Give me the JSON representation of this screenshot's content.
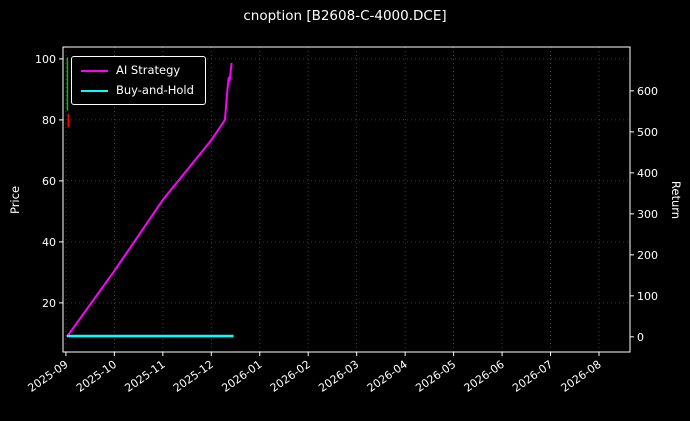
{
  "title": "cnoption [B2608-C-4000.DCE]",
  "colors": {
    "background": "#000000",
    "text": "#ffffff",
    "grid": "#4d4d4d",
    "spine": "#ffffff",
    "ai_strategy": "#ff00ff",
    "buy_and_hold": "#00ffff",
    "price_up": "#00c000",
    "price_down": "#ff0000"
  },
  "legend": {
    "items": [
      {
        "label": "AI Strategy",
        "color": "#ff00ff"
      },
      {
        "label": "Buy-and-Hold",
        "color": "#00ffff"
      }
    ]
  },
  "chart_data": {
    "type": "line",
    "title": "cnoption [B2608-C-4000.DCE]",
    "xlabel": "",
    "ylabel_left": "Price",
    "ylabel_right": "Return",
    "legend_position": "upper-left",
    "grid": true,
    "grid_style": "dotted",
    "x_unit": "months_since_2025-09",
    "x_tick_labels": [
      "2025-09",
      "2025-10",
      "2025-11",
      "2025-12",
      "2026-01",
      "2026-02",
      "2026-03",
      "2026-04",
      "2026-05",
      "2026-06",
      "2026-07",
      "2026-08"
    ],
    "x_range": [
      -0.06,
      11.64
    ],
    "price_axis": {
      "label": "Price",
      "ticks": [
        20,
        40,
        60,
        80,
        100
      ],
      "range": [
        3.9,
        103.9
      ]
    },
    "return_axis": {
      "label": "Return",
      "ticks": [
        0,
        100,
        200,
        300,
        400,
        500,
        600
      ],
      "range": [
        -37,
        707
      ]
    },
    "series": [
      {
        "name": "AI Strategy",
        "axis": "return",
        "color": "#ff00ff",
        "width": 2,
        "points": [
          [
            0.02,
            0
          ],
          [
            1.0,
            161
          ],
          [
            2.0,
            334
          ],
          [
            3.0,
            480
          ],
          [
            3.28,
            529
          ],
          [
            3.31,
            570
          ],
          [
            3.33,
            600
          ],
          [
            3.36,
            632
          ],
          [
            3.38,
            625
          ],
          [
            3.42,
            668
          ]
        ]
      },
      {
        "name": "Buy-and-Hold",
        "axis": "return",
        "color": "#00ffff",
        "width": 2.5,
        "points": [
          [
            0.02,
            2
          ],
          [
            3.46,
            2
          ]
        ]
      },
      {
        "name": "price-up-mark",
        "axis": "price",
        "color": "#00c000",
        "width": 1.5,
        "points": [
          [
            0.03,
            83
          ],
          [
            0.03,
            100.5
          ]
        ]
      },
      {
        "name": "price-down-mark",
        "axis": "price",
        "color": "#ff0000",
        "width": 1.5,
        "points": [
          [
            0.05,
            77.5
          ],
          [
            0.05,
            82
          ]
        ]
      }
    ]
  }
}
